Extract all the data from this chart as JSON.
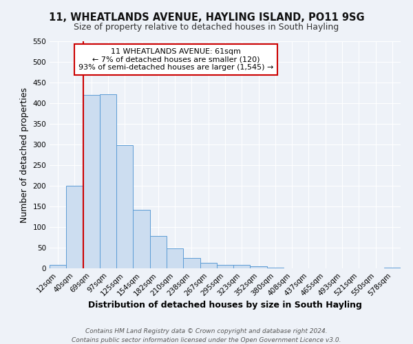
{
  "title": "11, WHEATLANDS AVENUE, HAYLING ISLAND, PO11 9SG",
  "subtitle": "Size of property relative to detached houses in South Hayling",
  "xlabel": "Distribution of detached houses by size in South Hayling",
  "ylabel": "Number of detached properties",
  "bin_labels": [
    "12sqm",
    "40sqm",
    "69sqm",
    "97sqm",
    "125sqm",
    "154sqm",
    "182sqm",
    "210sqm",
    "238sqm",
    "267sqm",
    "295sqm",
    "323sqm",
    "352sqm",
    "380sqm",
    "408sqm",
    "437sqm",
    "465sqm",
    "493sqm",
    "521sqm",
    "550sqm",
    "578sqm"
  ],
  "bar_heights": [
    8,
    200,
    420,
    422,
    298,
    142,
    78,
    48,
    25,
    13,
    9,
    8,
    5,
    2,
    0,
    0,
    0,
    0,
    0,
    0,
    2
  ],
  "bar_color": "#ccddf0",
  "bar_edge_color": "#5b9bd5",
  "red_line_index": 2,
  "red_line_color": "#cc0000",
  "annotation_title": "11 WHEATLANDS AVENUE: 61sqm",
  "annotation_line1": "← 7% of detached houses are smaller (120)",
  "annotation_line2": "93% of semi-detached houses are larger (1,545) →",
  "annotation_box_color": "#ffffff",
  "annotation_box_edge": "#cc0000",
  "ylim": [
    0,
    550
  ],
  "yticks": [
    0,
    50,
    100,
    150,
    200,
    250,
    300,
    350,
    400,
    450,
    500,
    550
  ],
  "footer1": "Contains HM Land Registry data © Crown copyright and database right 2024.",
  "footer2": "Contains public sector information licensed under the Open Government Licence v3.0.",
  "bg_color": "#eef2f8",
  "grid_color": "#ffffff",
  "title_fontsize": 10.5,
  "subtitle_fontsize": 9,
  "axis_label_fontsize": 9,
  "tick_fontsize": 7.5,
  "annotation_fontsize": 8,
  "footer_fontsize": 6.5
}
